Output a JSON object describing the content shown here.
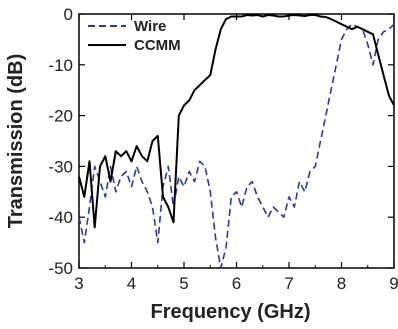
{
  "chart_data": {
    "type": "line",
    "title": "",
    "xlabel": "Frequency (GHz)",
    "ylabel": "Transmission (dB)",
    "xlim": [
      3,
      9
    ],
    "ylim": [
      -50,
      0
    ],
    "xticks": [
      3,
      4,
      5,
      6,
      7,
      8,
      9
    ],
    "yticks": [
      0,
      -10,
      -20,
      -30,
      -40,
      -50
    ],
    "grid": false,
    "legend_position": "top-left",
    "series": [
      {
        "name": "Wire",
        "color": "#2b3a9c",
        "style": "dashed",
        "x": [
          3.0,
          3.1,
          3.2,
          3.3,
          3.4,
          3.5,
          3.6,
          3.7,
          3.8,
          3.9,
          4.0,
          4.1,
          4.2,
          4.3,
          4.4,
          4.5,
          4.6,
          4.7,
          4.8,
          4.9,
          5.0,
          5.1,
          5.2,
          5.3,
          5.4,
          5.5,
          5.6,
          5.7,
          5.8,
          5.9,
          6.0,
          6.1,
          6.2,
          6.3,
          6.4,
          6.5,
          6.6,
          6.7,
          6.8,
          6.9,
          7.0,
          7.1,
          7.2,
          7.3,
          7.4,
          7.5,
          7.6,
          7.7,
          7.8,
          7.9,
          8.0,
          8.1,
          8.2,
          8.3,
          8.4,
          8.5,
          8.6,
          8.7,
          8.8,
          8.9,
          9.0
        ],
        "values": [
          -40,
          -45,
          -38,
          -30,
          -33,
          -36,
          -30,
          -35,
          -32,
          -31,
          -34,
          -30,
          -33,
          -35,
          -38,
          -45,
          -34,
          -30,
          -38,
          -32,
          -34,
          -31,
          -33,
          -29,
          -30,
          -35,
          -44,
          -50,
          -46,
          -36,
          -35,
          -38,
          -34,
          -33,
          -36,
          -38,
          -40,
          -38,
          -39,
          -40,
          -36,
          -38,
          -33,
          -35,
          -31,
          -30,
          -25,
          -20,
          -15,
          -10,
          -5,
          -3,
          -2,
          -2.5,
          -3,
          -6,
          -10,
          -5,
          -3.5,
          -3,
          -2
        ]
      },
      {
        "name": "CCMM",
        "color": "#000000",
        "style": "solid",
        "x": [
          3.0,
          3.1,
          3.2,
          3.3,
          3.4,
          3.5,
          3.6,
          3.7,
          3.8,
          3.9,
          4.0,
          4.1,
          4.2,
          4.3,
          4.4,
          4.5,
          4.55,
          4.6,
          4.7,
          4.8,
          4.9,
          5.0,
          5.1,
          5.2,
          5.3,
          5.4,
          5.5,
          5.6,
          5.7,
          5.8,
          5.9,
          6.0,
          6.1,
          6.2,
          6.3,
          6.4,
          6.5,
          6.6,
          6.7,
          6.8,
          6.9,
          7.0,
          7.1,
          7.2,
          7.3,
          7.4,
          7.5,
          7.6,
          7.7,
          7.8,
          7.9,
          8.0,
          8.1,
          8.2,
          8.3,
          8.4,
          8.5,
          8.6,
          8.7,
          8.8,
          8.9,
          9.0
        ],
        "values": [
          -32,
          -36,
          -29,
          -42,
          -30,
          -28,
          -33,
          -27,
          -28,
          -27,
          -29,
          -26,
          -28,
          -29,
          -25,
          -24,
          -30,
          -36,
          -38,
          -41,
          -20,
          -18,
          -17,
          -15,
          -14,
          -13,
          -12,
          -7,
          -3,
          -1,
          -0.5,
          -0.5,
          -0.5,
          -0.2,
          -0.3,
          -0.2,
          -0.5,
          -0.2,
          -0.3,
          -0.5,
          -0.5,
          -0.3,
          -0.2,
          -0.3,
          -0.4,
          -0.2,
          -0.2,
          -0.5,
          -0.6,
          -1,
          -1.5,
          -2,
          -2.5,
          -3,
          -2.5,
          -3,
          -3.5,
          -4,
          -8,
          -12,
          -16,
          -18
        ]
      }
    ]
  }
}
